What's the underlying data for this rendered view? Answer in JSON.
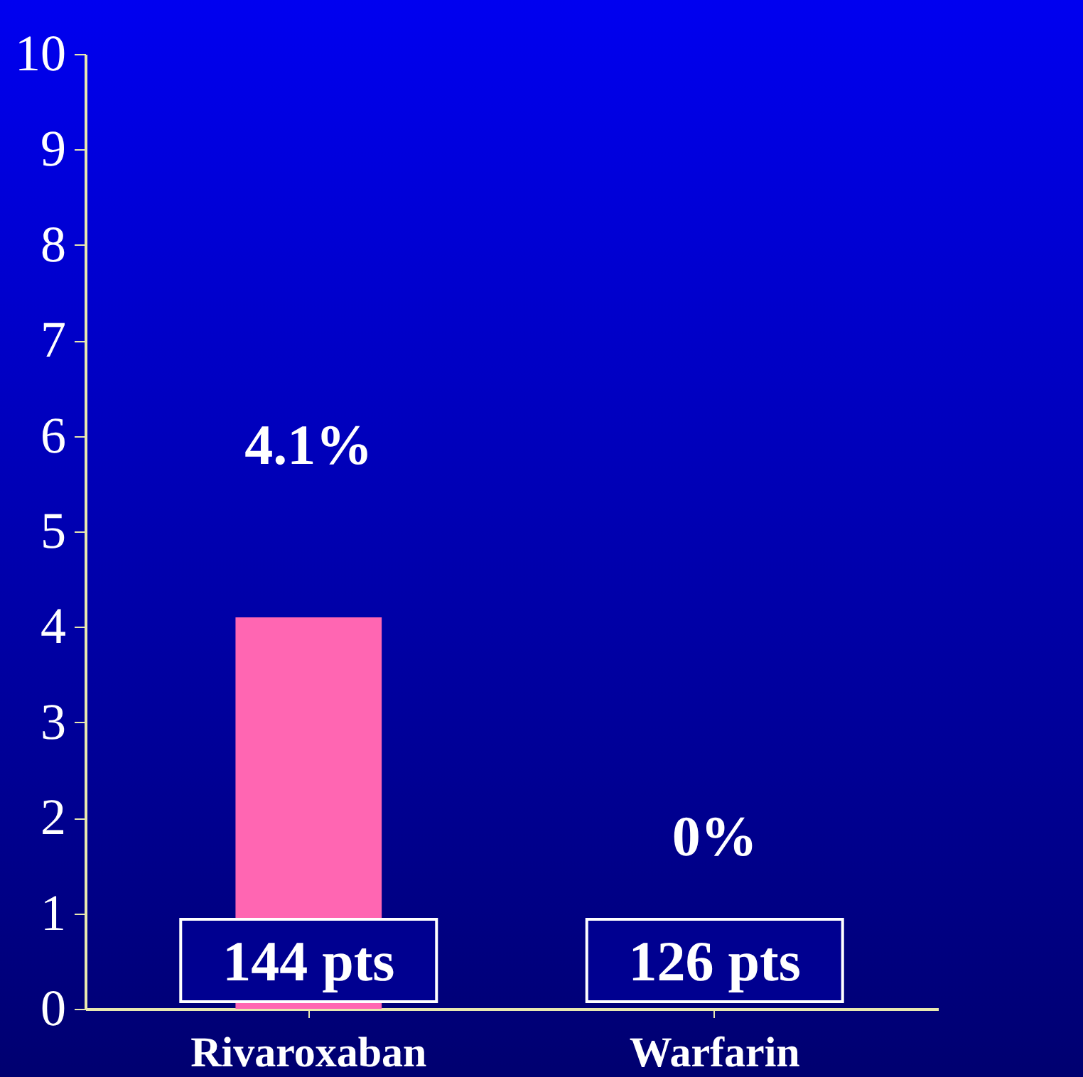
{
  "chart_data": {
    "type": "bar",
    "categories": [
      "Rivaroxaban",
      "Warfarin"
    ],
    "values": [
      4.1,
      0
    ],
    "color": "#ff66b2",
    "value_labels": [
      "4.1%",
      "0%"
    ],
    "ylim": [
      0,
      10
    ],
    "yticks": [
      0,
      1,
      2,
      3,
      4,
      5,
      6,
      7,
      8,
      9,
      10
    ],
    "annotations": [
      "144 pts",
      "126 pts"
    ],
    "grid": false
  }
}
